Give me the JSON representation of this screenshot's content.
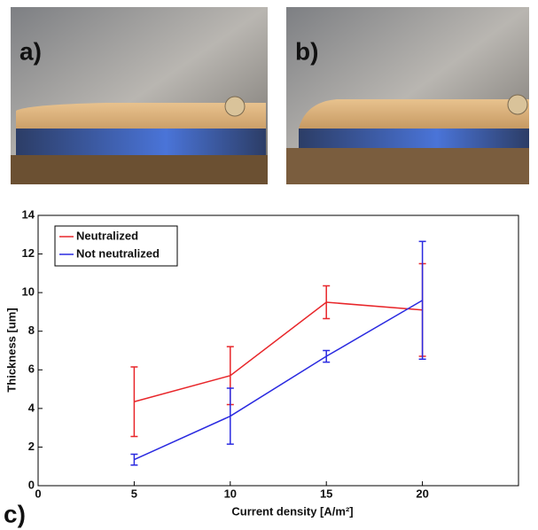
{
  "panel_labels": [
    "a)",
    "b)",
    "c)"
  ],
  "chart_data": {
    "type": "line",
    "x": [
      5,
      10,
      15,
      20
    ],
    "series": [
      {
        "name": "Neutralized",
        "color": "#e8262a",
        "values": [
          4.35,
          5.7,
          9.5,
          9.1
        ],
        "errors": [
          1.8,
          1.5,
          0.85,
          2.4
        ]
      },
      {
        "name": "Not neutralized",
        "color": "#2a2ae0",
        "values": [
          1.35,
          3.6,
          6.7,
          9.6
        ],
        "errors": [
          0.28,
          1.45,
          0.3,
          3.05
        ]
      }
    ],
    "xlabel": "Current density [A/m²]",
    "ylabel": "Thickness [um]",
    "xlim": [
      0,
      25
    ],
    "ylim": [
      0,
      14
    ],
    "xticks": [
      0,
      5,
      10,
      15,
      20
    ],
    "yticks": [
      0,
      2,
      4,
      6,
      8,
      10,
      12,
      14
    ],
    "grid": false,
    "legend": "upper left"
  }
}
